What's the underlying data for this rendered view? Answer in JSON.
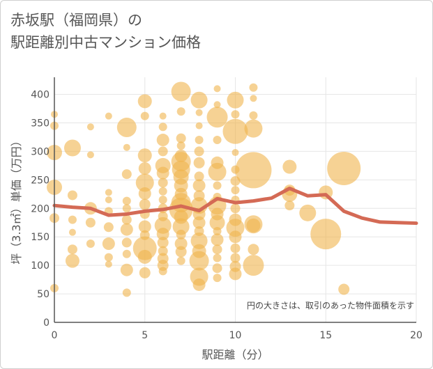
{
  "title_lines": [
    "赤坂駅（福岡県）の",
    "駅距離別中古マンション価格"
  ],
  "chart_data": {
    "type": "scatter",
    "xlabel": "駅距離（分）",
    "ylabel": "坪（3.3㎡）単価（万円）",
    "xlim": [
      0,
      20
    ],
    "ylim": [
      0,
      430
    ],
    "xticks": [
      0,
      5,
      10,
      15,
      20
    ],
    "yticks": [
      0,
      50,
      100,
      150,
      200,
      250,
      300,
      350,
      400
    ],
    "grid": true,
    "note": "円の大きさは、取引のあった物件面積を示す",
    "colors": {
      "bubble": "#f0b44c",
      "line": "#d46a55",
      "grid": "#e6e6e6",
      "axis": "#555555"
    },
    "bubbles": [
      {
        "x": 0,
        "y": 365,
        "s": 5
      },
      {
        "x": 0,
        "y": 345,
        "s": 6
      },
      {
        "x": 0,
        "y": 298,
        "s": 11
      },
      {
        "x": 0,
        "y": 237,
        "s": 11
      },
      {
        "x": 0,
        "y": 183,
        "s": 7
      },
      {
        "x": 0,
        "y": 60,
        "s": 6
      },
      {
        "x": 1,
        "y": 306,
        "s": 12
      },
      {
        "x": 1,
        "y": 223,
        "s": 7
      },
      {
        "x": 1,
        "y": 180,
        "s": 6
      },
      {
        "x": 1,
        "y": 158,
        "s": 5
      },
      {
        "x": 1,
        "y": 128,
        "s": 7
      },
      {
        "x": 1,
        "y": 108,
        "s": 10
      },
      {
        "x": 2,
        "y": 343,
        "s": 5
      },
      {
        "x": 2,
        "y": 294,
        "s": 5
      },
      {
        "x": 2,
        "y": 200,
        "s": 9
      },
      {
        "x": 2,
        "y": 175,
        "s": 7
      },
      {
        "x": 2,
        "y": 138,
        "s": 6
      },
      {
        "x": 3,
        "y": 362,
        "s": 5
      },
      {
        "x": 3,
        "y": 228,
        "s": 5
      },
      {
        "x": 3,
        "y": 215,
        "s": 5
      },
      {
        "x": 3,
        "y": 195,
        "s": 6
      },
      {
        "x": 3,
        "y": 167,
        "s": 7
      },
      {
        "x": 3,
        "y": 138,
        "s": 9
      },
      {
        "x": 3,
        "y": 114,
        "s": 6
      },
      {
        "x": 3,
        "y": 102,
        "s": 5
      },
      {
        "x": 4,
        "y": 342,
        "s": 14
      },
      {
        "x": 4,
        "y": 307,
        "s": 5
      },
      {
        "x": 4,
        "y": 260,
        "s": 7
      },
      {
        "x": 4,
        "y": 213,
        "s": 6
      },
      {
        "x": 4,
        "y": 200,
        "s": 6
      },
      {
        "x": 4,
        "y": 180,
        "s": 7
      },
      {
        "x": 4,
        "y": 163,
        "s": 9
      },
      {
        "x": 4,
        "y": 140,
        "s": 7
      },
      {
        "x": 4,
        "y": 120,
        "s": 6
      },
      {
        "x": 4,
        "y": 92,
        "s": 9
      },
      {
        "x": 4,
        "y": 52,
        "s": 6
      },
      {
        "x": 5,
        "y": 388,
        "s": 10
      },
      {
        "x": 5,
        "y": 362,
        "s": 6
      },
      {
        "x": 5,
        "y": 293,
        "s": 10
      },
      {
        "x": 5,
        "y": 270,
        "s": 9
      },
      {
        "x": 5,
        "y": 245,
        "s": 13
      },
      {
        "x": 5,
        "y": 226,
        "s": 9
      },
      {
        "x": 5,
        "y": 207,
        "s": 8
      },
      {
        "x": 5,
        "y": 190,
        "s": 7
      },
      {
        "x": 5,
        "y": 168,
        "s": 9
      },
      {
        "x": 5,
        "y": 153,
        "s": 7
      },
      {
        "x": 5,
        "y": 130,
        "s": 17
      },
      {
        "x": 5,
        "y": 115,
        "s": 10
      },
      {
        "x": 5,
        "y": 87,
        "s": 8
      },
      {
        "x": 6,
        "y": 362,
        "s": 5
      },
      {
        "x": 6,
        "y": 343,
        "s": 6
      },
      {
        "x": 6,
        "y": 320,
        "s": 9
      },
      {
        "x": 6,
        "y": 300,
        "s": 7
      },
      {
        "x": 6,
        "y": 275,
        "s": 11
      },
      {
        "x": 6,
        "y": 262,
        "s": 9
      },
      {
        "x": 6,
        "y": 245,
        "s": 7
      },
      {
        "x": 6,
        "y": 230,
        "s": 6
      },
      {
        "x": 6,
        "y": 215,
        "s": 6
      },
      {
        "x": 6,
        "y": 200,
        "s": 7
      },
      {
        "x": 6,
        "y": 186,
        "s": 7
      },
      {
        "x": 6,
        "y": 170,
        "s": 12
      },
      {
        "x": 6,
        "y": 155,
        "s": 9
      },
      {
        "x": 6,
        "y": 140,
        "s": 8
      },
      {
        "x": 6,
        "y": 125,
        "s": 7
      },
      {
        "x": 6,
        "y": 112,
        "s": 8
      },
      {
        "x": 6,
        "y": 100,
        "s": 8
      },
      {
        "x": 6,
        "y": 90,
        "s": 6
      },
      {
        "x": 7,
        "y": 405,
        "s": 14
      },
      {
        "x": 7,
        "y": 370,
        "s": 6
      },
      {
        "x": 7,
        "y": 323,
        "s": 7
      },
      {
        "x": 7,
        "y": 310,
        "s": 6
      },
      {
        "x": 7,
        "y": 292,
        "s": 9
      },
      {
        "x": 7,
        "y": 282,
        "s": 14
      },
      {
        "x": 7,
        "y": 268,
        "s": 13
      },
      {
        "x": 7,
        "y": 255,
        "s": 11
      },
      {
        "x": 7,
        "y": 240,
        "s": 10
      },
      {
        "x": 7,
        "y": 225,
        "s": 9
      },
      {
        "x": 7,
        "y": 210,
        "s": 14
      },
      {
        "x": 7,
        "y": 198,
        "s": 17
      },
      {
        "x": 7,
        "y": 185,
        "s": 10
      },
      {
        "x": 7,
        "y": 168,
        "s": 12
      },
      {
        "x": 7,
        "y": 154,
        "s": 7
      },
      {
        "x": 7,
        "y": 138,
        "s": 9
      },
      {
        "x": 7,
        "y": 124,
        "s": 8
      },
      {
        "x": 7,
        "y": 108,
        "s": 6
      },
      {
        "x": 8,
        "y": 390,
        "s": 12
      },
      {
        "x": 8,
        "y": 368,
        "s": 5
      },
      {
        "x": 8,
        "y": 345,
        "s": 5
      },
      {
        "x": 8,
        "y": 320,
        "s": 6
      },
      {
        "x": 8,
        "y": 300,
        "s": 7
      },
      {
        "x": 8,
        "y": 280,
        "s": 8
      },
      {
        "x": 8,
        "y": 256,
        "s": 7
      },
      {
        "x": 8,
        "y": 240,
        "s": 9
      },
      {
        "x": 8,
        "y": 222,
        "s": 8
      },
      {
        "x": 8,
        "y": 205,
        "s": 12
      },
      {
        "x": 8,
        "y": 190,
        "s": 9
      },
      {
        "x": 8,
        "y": 175,
        "s": 9
      },
      {
        "x": 8,
        "y": 160,
        "s": 7
      },
      {
        "x": 8,
        "y": 143,
        "s": 12
      },
      {
        "x": 8,
        "y": 125,
        "s": 10
      },
      {
        "x": 8,
        "y": 108,
        "s": 14
      },
      {
        "x": 8,
        "y": 80,
        "s": 13
      },
      {
        "x": 8,
        "y": 66,
        "s": 9
      },
      {
        "x": 9,
        "y": 410,
        "s": 5
      },
      {
        "x": 9,
        "y": 382,
        "s": 5
      },
      {
        "x": 9,
        "y": 360,
        "s": 15
      },
      {
        "x": 9,
        "y": 320,
        "s": 6
      },
      {
        "x": 9,
        "y": 280,
        "s": 9
      },
      {
        "x": 9,
        "y": 264,
        "s": 13
      },
      {
        "x": 9,
        "y": 240,
        "s": 6
      },
      {
        "x": 9,
        "y": 220,
        "s": 6
      },
      {
        "x": 9,
        "y": 205,
        "s": 13
      },
      {
        "x": 9,
        "y": 190,
        "s": 9
      },
      {
        "x": 9,
        "y": 175,
        "s": 11
      },
      {
        "x": 9,
        "y": 160,
        "s": 6
      },
      {
        "x": 9,
        "y": 145,
        "s": 9
      },
      {
        "x": 9,
        "y": 128,
        "s": 7
      },
      {
        "x": 9,
        "y": 113,
        "s": 6
      },
      {
        "x": 9,
        "y": 95,
        "s": 7
      },
      {
        "x": 9,
        "y": 78,
        "s": 6
      },
      {
        "x": 10,
        "y": 390,
        "s": 12
      },
      {
        "x": 10,
        "y": 365,
        "s": 6
      },
      {
        "x": 10,
        "y": 335,
        "s": 18
      },
      {
        "x": 10,
        "y": 298,
        "s": 5
      },
      {
        "x": 10,
        "y": 268,
        "s": 6
      },
      {
        "x": 10,
        "y": 248,
        "s": 7
      },
      {
        "x": 10,
        "y": 232,
        "s": 6
      },
      {
        "x": 10,
        "y": 215,
        "s": 6
      },
      {
        "x": 10,
        "y": 200,
        "s": 7
      },
      {
        "x": 10,
        "y": 180,
        "s": 9
      },
      {
        "x": 10,
        "y": 166,
        "s": 13
      },
      {
        "x": 10,
        "y": 150,
        "s": 9
      },
      {
        "x": 10,
        "y": 130,
        "s": 7
      },
      {
        "x": 10,
        "y": 113,
        "s": 7
      },
      {
        "x": 10,
        "y": 98,
        "s": 8
      },
      {
        "x": 10,
        "y": 85,
        "s": 9
      },
      {
        "x": 11,
        "y": 412,
        "s": 6
      },
      {
        "x": 11,
        "y": 393,
        "s": 5
      },
      {
        "x": 11,
        "y": 363,
        "s": 6
      },
      {
        "x": 11,
        "y": 340,
        "s": 13
      },
      {
        "x": 11,
        "y": 267,
        "s": 26
      },
      {
        "x": 11,
        "y": 172,
        "s": 13
      },
      {
        "x": 11,
        "y": 170,
        "s": 10
      },
      {
        "x": 11,
        "y": 128,
        "s": 8
      },
      {
        "x": 11,
        "y": 100,
        "s": 15
      },
      {
        "x": 13,
        "y": 273,
        "s": 10
      },
      {
        "x": 13,
        "y": 232,
        "s": 8
      },
      {
        "x": 13,
        "y": 225,
        "s": 11
      },
      {
        "x": 13,
        "y": 205,
        "s": 7
      },
      {
        "x": 14,
        "y": 192,
        "s": 12
      },
      {
        "x": 15,
        "y": 228,
        "s": 10
      },
      {
        "x": 15,
        "y": 155,
        "s": 22
      },
      {
        "x": 16,
        "y": 270,
        "s": 24
      },
      {
        "x": 16,
        "y": 58,
        "s": 8
      }
    ],
    "average_line": {
      "x": [
        0,
        1,
        2,
        3,
        4,
        5,
        6,
        7,
        8,
        9,
        10,
        11,
        12,
        13,
        14,
        15,
        16,
        17,
        18,
        19,
        20
      ],
      "y": [
        205,
        202,
        200,
        188,
        190,
        195,
        198,
        204,
        196,
        217,
        210,
        213,
        218,
        235,
        222,
        224,
        195,
        183,
        176,
        175,
        174
      ]
    }
  }
}
